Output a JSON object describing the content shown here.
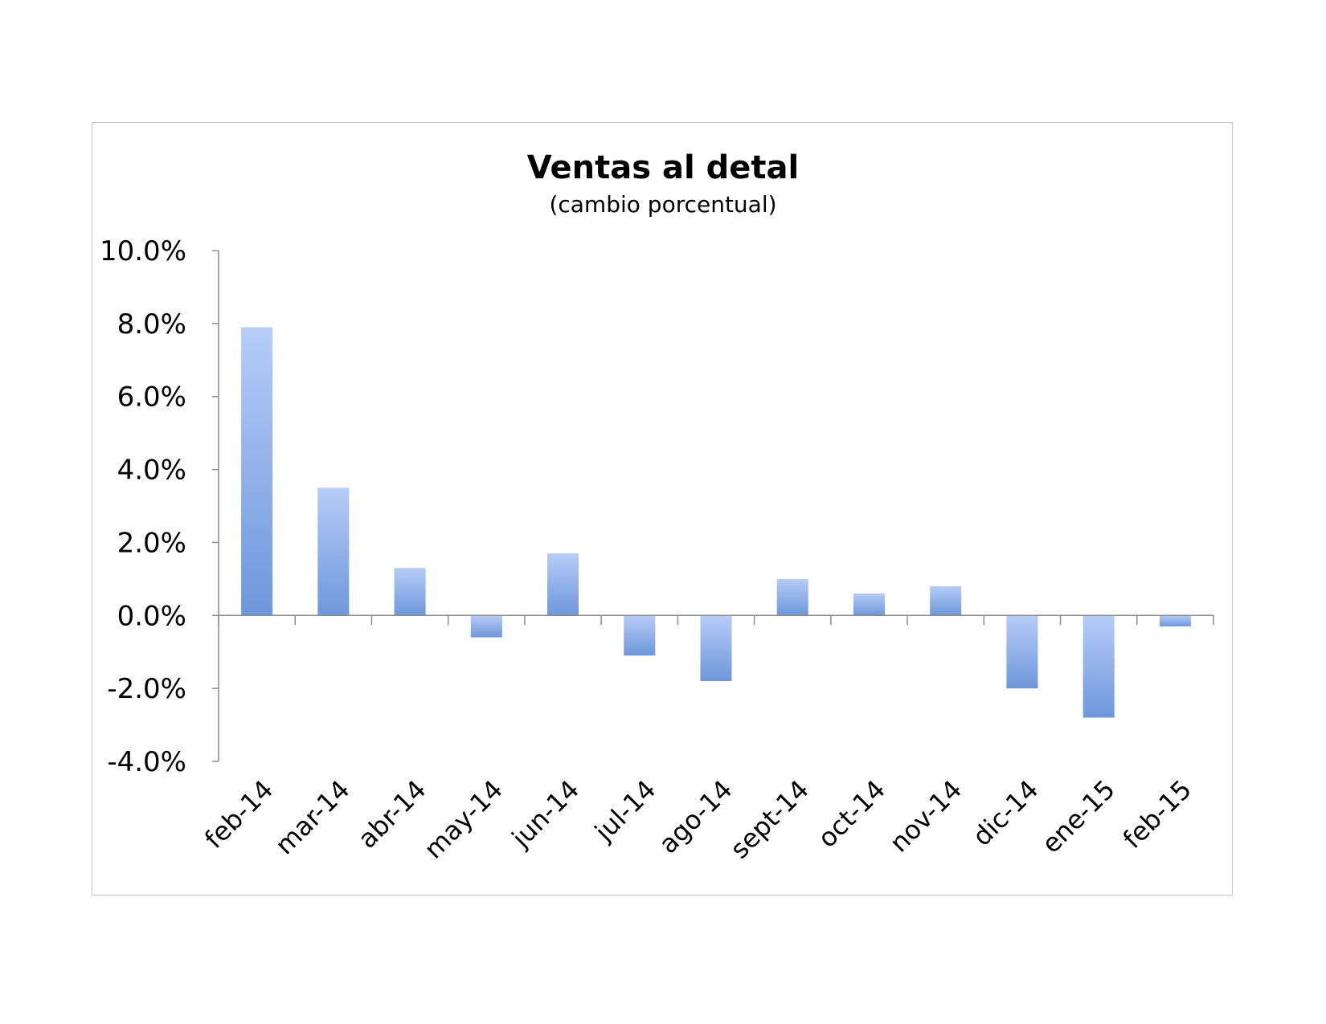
{
  "chart_data": {
    "type": "bar",
    "title": "Ventas al detal",
    "subtitle": "(cambio porcentual)",
    "xlabel": "",
    "ylabel": "",
    "categories": [
      "feb-14",
      "mar-14",
      "abr-14",
      "may-14",
      "jun-14",
      "jul-14",
      "ago-14",
      "sept-14",
      "oct-14",
      "nov-14",
      "dic-14",
      "ene-15",
      "feb-15"
    ],
    "values": [
      7.9,
      3.5,
      1.3,
      -0.6,
      1.7,
      -1.1,
      -1.8,
      1.0,
      0.6,
      0.8,
      -2.0,
      -2.8,
      -0.3
    ],
    "ylim": [
      -4.0,
      10.0
    ],
    "yticks": [
      10.0,
      8.0,
      6.0,
      4.0,
      2.0,
      0.0,
      -2.0,
      -4.0
    ],
    "ytick_labels": [
      "10.0%",
      "8.0%",
      "6.0%",
      "4.0%",
      "2.0%",
      "0.0%",
      "-2.0%",
      "-4.0%"
    ],
    "grid": false,
    "legend": "none",
    "bar_color_top": "#b7ccf7",
    "bar_color_bottom": "#6e97db"
  }
}
